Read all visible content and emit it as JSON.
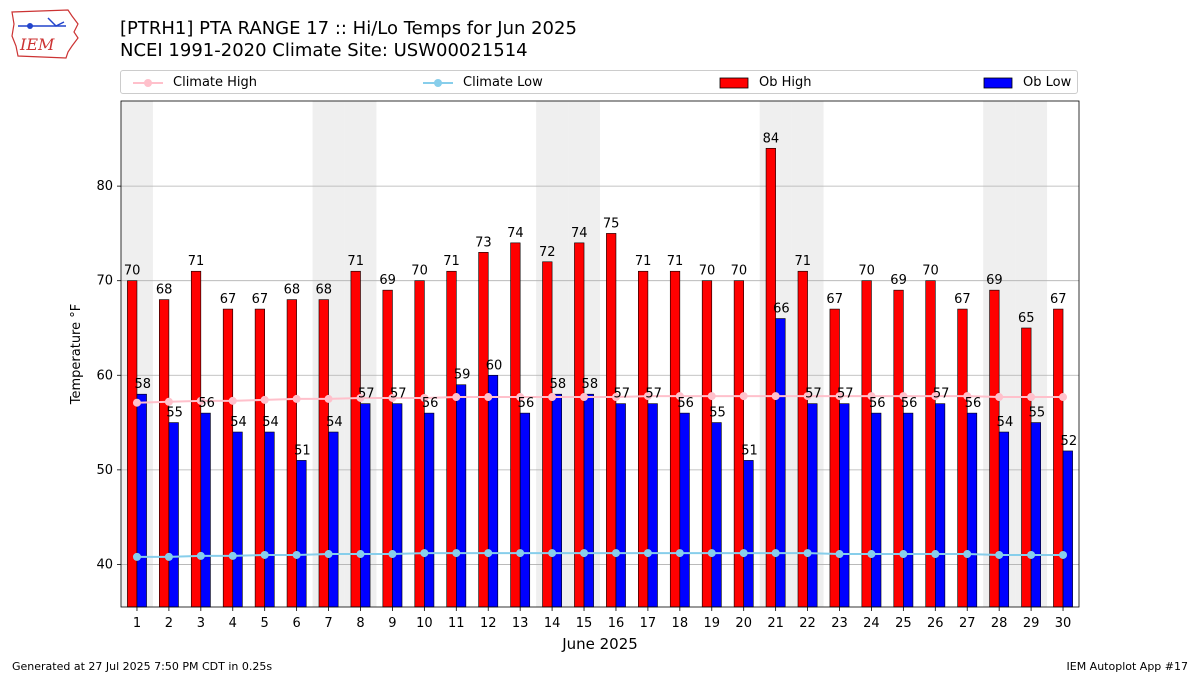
{
  "header": {
    "title_line1": "[PTRH1] PTA RANGE 17 :: Hi/Lo Temps for Jun 2025",
    "title_line2": "NCEI 1991-2020 Climate Site: USW00021514"
  },
  "logo": {
    "text": "IEM",
    "icon": "iem-iowa-logo"
  },
  "legend": {
    "placement": "top",
    "items": [
      {
        "label": "Climate High",
        "color": "#ffc0cb",
        "kind": "line-marker"
      },
      {
        "label": "Climate Low",
        "color": "#87ceeb",
        "kind": "line-marker"
      },
      {
        "label": "Ob High",
        "color": "#ff0000",
        "kind": "bar"
      },
      {
        "label": "Ob Low",
        "color": "#0000ff",
        "kind": "bar"
      }
    ]
  },
  "footer": {
    "left": "Generated at 27 Jul 2025 7:50 PM CDT in 0.25s",
    "right": "IEM Autoplot App #17"
  },
  "chart_data": {
    "type": "bar",
    "xlabel": "June 2025",
    "ylabel": "Temperature °F",
    "ylim": [
      35.5,
      89
    ],
    "yticks": [
      40,
      50,
      60,
      70,
      80
    ],
    "grid": "horizontal",
    "weekend_shading_days": [
      1,
      7,
      8,
      14,
      15,
      21,
      22,
      28,
      29
    ],
    "categories": [
      "1",
      "2",
      "3",
      "4",
      "5",
      "6",
      "7",
      "8",
      "9",
      "10",
      "11",
      "12",
      "13",
      "14",
      "15",
      "16",
      "17",
      "18",
      "19",
      "20",
      "21",
      "22",
      "23",
      "24",
      "25",
      "26",
      "27",
      "28",
      "29",
      "30"
    ],
    "series": [
      {
        "name": "Ob High",
        "type": "bar",
        "color": "#ff0000",
        "values": [
          70,
          68,
          71,
          67,
          67,
          68,
          68,
          71,
          69,
          70,
          71,
          73,
          74,
          72,
          74,
          75,
          71,
          71,
          70,
          70,
          84,
          71,
          67,
          70,
          69,
          70,
          67,
          69,
          65,
          67
        ]
      },
      {
        "name": "Ob Low",
        "type": "bar",
        "color": "#0000ff",
        "values": [
          58,
          55,
          56,
          54,
          54,
          51,
          54,
          57,
          57,
          56,
          59,
          60,
          56,
          58,
          58,
          57,
          57,
          56,
          55,
          51,
          66,
          57,
          57,
          56,
          56,
          57,
          56,
          54,
          55,
          52
        ]
      },
      {
        "name": "Climate High",
        "type": "line",
        "color": "#ffc0cb",
        "values": [
          57.1,
          57.2,
          57.3,
          57.3,
          57.4,
          57.5,
          57.5,
          57.6,
          57.6,
          57.6,
          57.7,
          57.7,
          57.7,
          57.7,
          57.7,
          57.7,
          57.8,
          57.8,
          57.8,
          57.8,
          57.8,
          57.8,
          57.8,
          57.8,
          57.8,
          57.8,
          57.8,
          57.7,
          57.7,
          57.7
        ]
      },
      {
        "name": "Climate Low",
        "type": "line",
        "color": "#87ceeb",
        "values": [
          40.8,
          40.8,
          40.9,
          40.9,
          41.0,
          41.0,
          41.1,
          41.1,
          41.1,
          41.2,
          41.2,
          41.2,
          41.2,
          41.2,
          41.2,
          41.2,
          41.2,
          41.2,
          41.2,
          41.2,
          41.2,
          41.2,
          41.1,
          41.1,
          41.1,
          41.1,
          41.1,
          41.0,
          41.0,
          41.0
        ]
      }
    ]
  }
}
